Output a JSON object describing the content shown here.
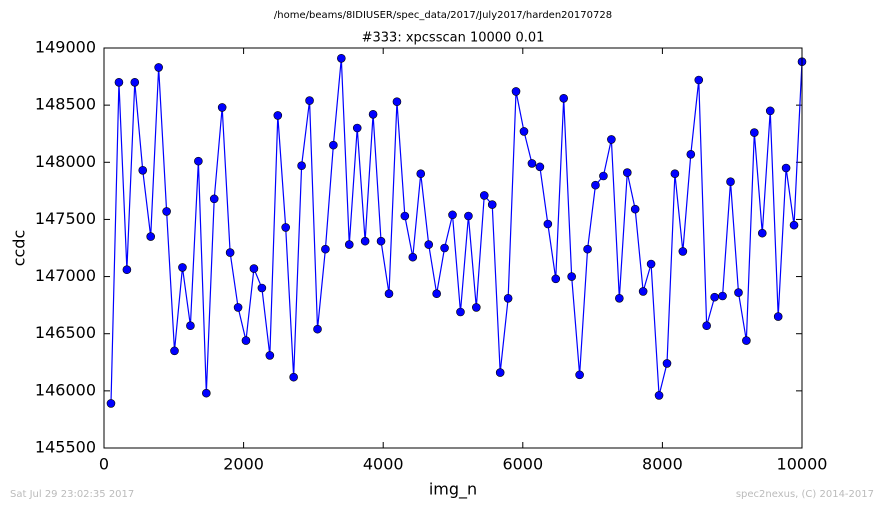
{
  "chart_data": {
    "type": "line",
    "suptitle": "/home/beams/8IDIUSER/spec_data/2017/July2017/harden20170728",
    "title": "#333: xpcsscan 10000 0.01",
    "xlabel": "img_n",
    "ylabel": "ccdc",
    "timestamp": "Sat Jul 29 23:02:35 2017",
    "credit": "spec2nexus, (C) 2014-2017",
    "xlim": [
      0,
      10000
    ],
    "xticks": [
      0,
      2000,
      4000,
      6000,
      8000,
      10000
    ],
    "ylim": [
      145500,
      149000
    ],
    "yticks": [
      145500,
      146000,
      146500,
      147000,
      147500,
      148000,
      148500,
      149000
    ],
    "series": [
      {
        "color": "#0000ff",
        "x": [
          100,
          214,
          328,
          441,
          555,
          669,
          783,
          897,
          1010,
          1124,
          1238,
          1352,
          1466,
          1579,
          1693,
          1807,
          1921,
          2034,
          2148,
          2262,
          2376,
          2490,
          2603,
          2717,
          2831,
          2945,
          3059,
          3172,
          3286,
          3400,
          3514,
          3628,
          3741,
          3855,
          3969,
          4083,
          4197,
          4310,
          4424,
          4538,
          4652,
          4766,
          4879,
          4993,
          5107,
          5221,
          5334,
          5448,
          5562,
          5676,
          5790,
          5903,
          6017,
          6131,
          6245,
          6359,
          6472,
          6586,
          6700,
          6814,
          6928,
          7041,
          7155,
          7269,
          7383,
          7497,
          7610,
          7724,
          7838,
          7952,
          8066,
          8179,
          8293,
          8407,
          8521,
          8634,
          8748,
          8862,
          8976,
          9090,
          9203,
          9317,
          9431,
          9545,
          9659,
          9772,
          9886,
          10000
        ],
        "values": [
          145890,
          148700,
          147060,
          148700,
          147930,
          147350,
          148830,
          147570,
          146350,
          147080,
          146570,
          148010,
          145980,
          147680,
          148480,
          147210,
          146730,
          146440,
          147070,
          146900,
          146310,
          148410,
          147430,
          146120,
          147970,
          148540,
          146540,
          147240,
          148150,
          148910,
          147280,
          148300,
          147310,
          148420,
          147310,
          146850,
          148530,
          147530,
          147170,
          147900,
          147280,
          146850,
          147250,
          147540,
          146690,
          147530,
          146730,
          147710,
          147630,
          146160,
          146810,
          148620,
          148270,
          147990,
          147960,
          147460,
          146980,
          148560,
          147000,
          146140,
          147240,
          147800,
          147880,
          148200,
          146810,
          147910,
          147590,
          146870,
          147110,
          145960,
          146240,
          147900,
          147220,
          148070,
          148720,
          146570,
          146820,
          146830,
          147830,
          146860,
          146440,
          148260,
          147380,
          148450,
          146650,
          147950,
          147450,
          148880
        ]
      }
    ]
  }
}
